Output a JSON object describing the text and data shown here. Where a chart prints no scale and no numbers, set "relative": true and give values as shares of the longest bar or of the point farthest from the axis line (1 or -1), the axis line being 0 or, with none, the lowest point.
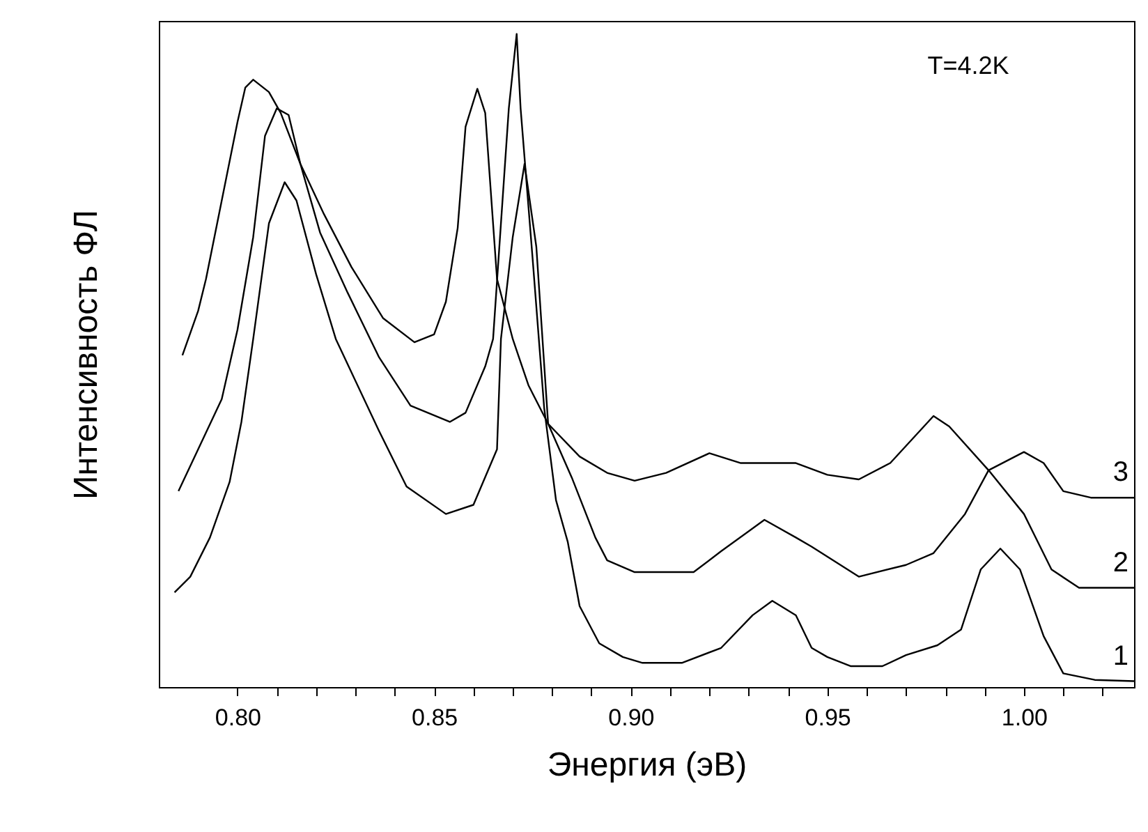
{
  "chart_data": {
    "type": "line",
    "xlabel": "Энергия (эВ)",
    "ylabel": "Интенсивность ФЛ",
    "relative": true,
    "annotations": [
      "T=4.2K"
    ],
    "xlim": [
      0.78,
      1.028
    ],
    "xticks": [
      {
        "value": 0.8,
        "label": "0.80"
      },
      {
        "value": 0.81,
        "label": null
      },
      {
        "value": 0.82,
        "label": null
      },
      {
        "value": 0.83,
        "label": null
      },
      {
        "value": 0.84,
        "label": null
      },
      {
        "value": 0.85,
        "label": "0.85"
      },
      {
        "value": 0.86,
        "label": null
      },
      {
        "value": 0.87,
        "label": null
      },
      {
        "value": 0.88,
        "label": null
      },
      {
        "value": 0.89,
        "label": null
      },
      {
        "value": 0.9,
        "label": "0.90"
      },
      {
        "value": 0.91,
        "label": null
      },
      {
        "value": 0.92,
        "label": null
      },
      {
        "value": 0.93,
        "label": null
      },
      {
        "value": 0.94,
        "label": null
      },
      {
        "value": 0.95,
        "label": "0.95"
      },
      {
        "value": 0.96,
        "label": null
      },
      {
        "value": 0.97,
        "label": null
      },
      {
        "value": 0.98,
        "label": null
      },
      {
        "value": 0.99,
        "label": null
      },
      {
        "value": 1.0,
        "label": "1.00"
      },
      {
        "value": 1.01,
        "label": null
      },
      {
        "value": 1.02,
        "label": null
      }
    ],
    "grid": false,
    "marker": "none",
    "line_style": "solid",
    "series": [
      {
        "name": "1",
        "color": "#000000",
        "x": [
          0.785,
          0.79,
          0.796,
          0.8,
          0.804,
          0.807,
          0.81,
          0.813,
          0.816,
          0.821,
          0.828,
          0.836,
          0.844,
          0.854,
          0.858,
          0.863,
          0.865,
          0.867,
          0.869,
          0.871,
          0.872,
          0.875,
          0.878,
          0.881,
          0.884,
          0.887,
          0.892,
          0.898,
          0.903,
          0.913,
          0.923,
          0.931,
          0.936,
          0.942,
          0.946,
          0.95,
          0.956,
          0.964,
          0.97,
          0.978,
          0.984,
          0.989,
          0.994,
          0.999,
          1.005,
          1.01,
          1.018,
          1.028
        ],
        "values": [
          0.3,
          0.364,
          0.441,
          0.547,
          0.689,
          0.844,
          0.886,
          0.876,
          0.801,
          0.696,
          0.604,
          0.505,
          0.431,
          0.406,
          0.42,
          0.491,
          0.533,
          0.71,
          0.886,
          1,
          0.886,
          0.66,
          0.427,
          0.286,
          0.222,
          0.124,
          0.067,
          0.046,
          0.037,
          0.037,
          0.06,
          0.11,
          0.132,
          0.11,
          0.06,
          0.046,
          0.032,
          0.032,
          0.049,
          0.064,
          0.088,
          0.18,
          0.212,
          0.18,
          0.078,
          0.021,
          0.011,
          0.009
        ]
      },
      {
        "name": "2",
        "color": "#000000",
        "x": [
          0.786,
          0.79,
          0.792,
          0.796,
          0.8,
          0.802,
          0.804,
          0.808,
          0.811,
          0.816,
          0.822,
          0.829,
          0.837,
          0.845,
          0.85,
          0.853,
          0.856,
          0.858,
          0.861,
          0.863,
          0.866,
          0.87,
          0.874,
          0.879,
          0.887,
          0.894,
          0.901,
          0.909,
          0.92,
          0.928,
          0.942,
          0.95,
          0.958,
          0.966,
          0.977,
          0.981,
          0.991,
          1.0,
          1.007,
          1.014,
          1.028
        ],
        "values": [
          0.508,
          0.576,
          0.625,
          0.745,
          0.865,
          0.918,
          0.93,
          0.911,
          0.879,
          0.801,
          0.724,
          0.643,
          0.565,
          0.528,
          0.54,
          0.59,
          0.703,
          0.858,
          0.916,
          0.879,
          0.625,
          0.533,
          0.462,
          0.403,
          0.353,
          0.328,
          0.316,
          0.328,
          0.358,
          0.343,
          0.343,
          0.325,
          0.318,
          0.343,
          0.415,
          0.399,
          0.332,
          0.265,
          0.18,
          0.152,
          0.152
        ]
      },
      {
        "name": "3",
        "color": "#000000",
        "x": [
          0.784,
          0.788,
          0.793,
          0.798,
          0.801,
          0.804,
          0.808,
          0.812,
          0.815,
          0.82,
          0.825,
          0.836,
          0.843,
          0.853,
          0.86,
          0.866,
          0.867,
          0.87,
          0.873,
          0.876,
          0.879,
          0.885,
          0.891,
          0.894,
          0.901,
          0.916,
          0.923,
          0.934,
          0.942,
          0.946,
          0.958,
          0.97,
          0.977,
          0.985,
          0.991,
          1.0,
          1.005,
          1.01,
          1.017,
          1.028
        ],
        "values": [
          0.145,
          0.169,
          0.229,
          0.314,
          0.406,
          0.533,
          0.71,
          0.773,
          0.745,
          0.632,
          0.533,
          0.392,
          0.307,
          0.265,
          0.279,
          0.364,
          0.533,
          0.689,
          0.801,
          0.674,
          0.403,
          0.321,
          0.229,
          0.194,
          0.176,
          0.176,
          0.208,
          0.256,
          0.229,
          0.215,
          0.169,
          0.187,
          0.205,
          0.265,
          0.332,
          0.36,
          0.343,
          0.3,
          0.29,
          0.29
        ]
      }
    ]
  }
}
